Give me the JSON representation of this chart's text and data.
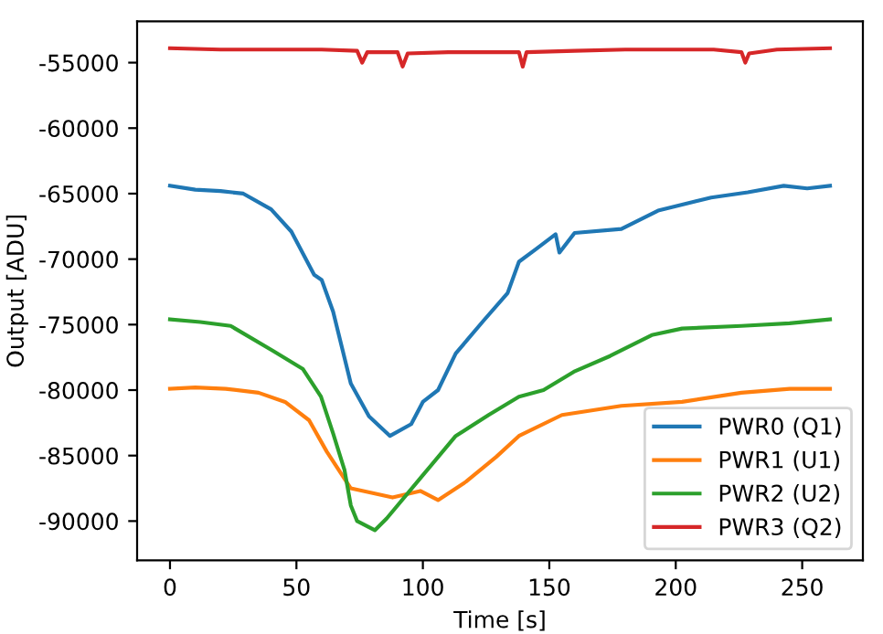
{
  "chart_data": {
    "type": "line",
    "xlabel": "Time [s]",
    "ylabel": "Output [ADU]",
    "xlim": [
      -13,
      274
    ],
    "xticks": [
      0,
      50,
      100,
      150,
      200,
      250
    ],
    "ylim": [
      -93000,
      -51850
    ],
    "yticks": [
      -90000,
      -85000,
      -80000,
      -75000,
      -70000,
      -65000,
      -60000,
      -55000
    ],
    "grid": false,
    "legend": "bottom right",
    "marker": "none",
    "line_style": "solid",
    "series": [
      {
        "name": "PWR0 (Q1)",
        "color": "#1f77b4",
        "x": [
          0,
          10,
          20,
          29,
          40,
          48,
          57,
          60,
          64.5,
          71.5,
          78.7,
          87,
          95.4,
          100,
          106,
          113,
          124,
          133.5,
          138,
          145,
          152.5,
          154,
          160,
          178.5,
          193,
          214,
          228.5,
          242.7,
          252,
          261
        ],
        "values": [
          -64400,
          -64700,
          -64800,
          -65000,
          -66200,
          -67900,
          -71200,
          -71600,
          -74000,
          -79500,
          -82000,
          -83500,
          -82600,
          -80900,
          -80000,
          -77200,
          -74700,
          -72600,
          -70200,
          -69200,
          -68100,
          -69500,
          -68000,
          -67700,
          -66300,
          -65300,
          -64900,
          -64400,
          -64600,
          -64400
        ]
      },
      {
        "name": "PWR1 (U1)",
        "color": "#ff7f0e",
        "x": [
          0,
          10,
          22,
          35,
          45.5,
          55,
          62,
          71.5,
          81,
          88,
          99,
          106,
          117,
          129,
          138,
          155,
          178.5,
          202.5,
          226,
          245,
          261
        ],
        "values": [
          -79900,
          -79800,
          -79900,
          -80200,
          -80900,
          -82300,
          -84700,
          -87500,
          -87900,
          -88200,
          -87700,
          -88400,
          -87000,
          -85100,
          -83500,
          -81900,
          -81200,
          -80900,
          -80200,
          -79900,
          -79900
        ]
      },
      {
        "name": "PWR2 (U2)",
        "color": "#2ca02c",
        "x": [
          0,
          12,
          24,
          40.7,
          52.6,
          59.7,
          64.5,
          69,
          71.5,
          74,
          81,
          85.7,
          100,
          113,
          126,
          138,
          147.7,
          159.7,
          174,
          190.5,
          202.5,
          226,
          245,
          261
        ],
        "values": [
          -74600,
          -74800,
          -75100,
          -77000,
          -78400,
          -80500,
          -83300,
          -86100,
          -88800,
          -90000,
          -90700,
          -89800,
          -86500,
          -83500,
          -81900,
          -80500,
          -80000,
          -78600,
          -77400,
          -75800,
          -75300,
          -75100,
          -74900,
          -74600
        ]
      },
      {
        "name": "PWR3 (Q2)",
        "color": "#d62728",
        "x": [
          0,
          20,
          40,
          60,
          74,
          76,
          78,
          90,
          92,
          94,
          110,
          130,
          138,
          139.5,
          141,
          160,
          180,
          200,
          215,
          226,
          227.5,
          229,
          240,
          261
        ],
        "values": [
          -53900,
          -54000,
          -54000,
          -54000,
          -54100,
          -55000,
          -54200,
          -54200,
          -55300,
          -54300,
          -54200,
          -54200,
          -54200,
          -55300,
          -54200,
          -54100,
          -54000,
          -54000,
          -54000,
          -54200,
          -55000,
          -54300,
          -54000,
          -53900
        ]
      }
    ]
  }
}
